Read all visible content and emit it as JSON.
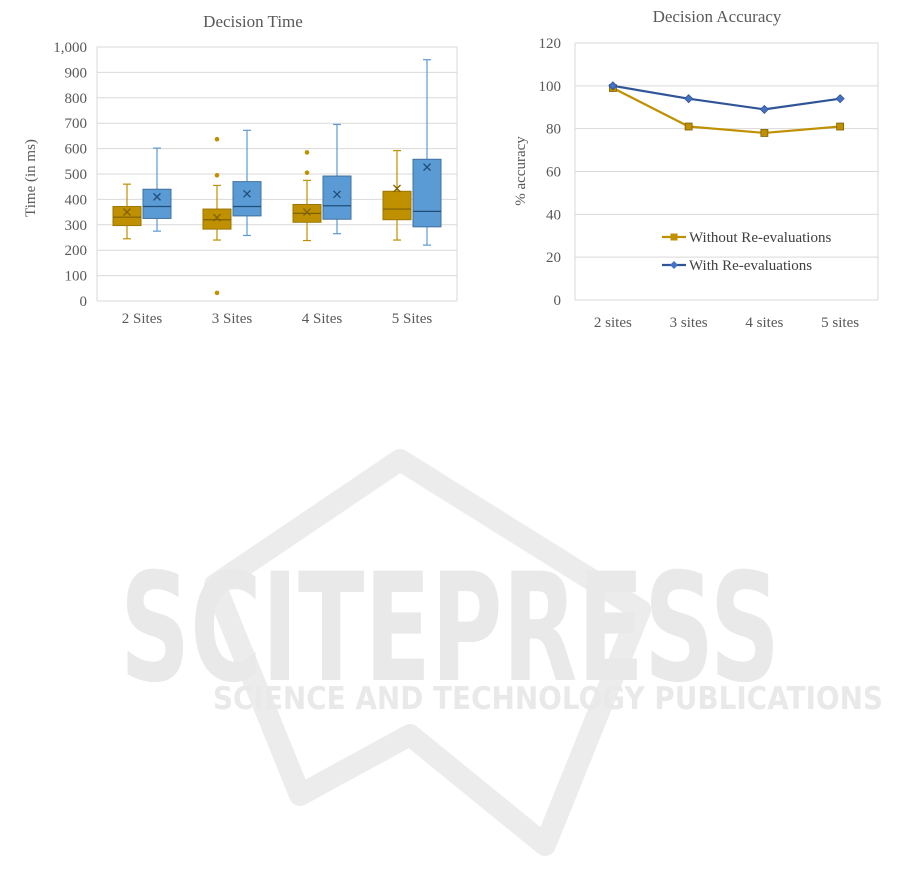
{
  "watermark": {
    "big": "SCITEPRESS",
    "small": "SCIENCE AND TECHNOLOGY PUBLICATIONS"
  },
  "chart_data": [
    {
      "type": "box",
      "title": "Decision Time",
      "ylabel": "Time (in ms)",
      "ylim": [
        0,
        1000
      ],
      "yticks": [
        "0",
        "100",
        "200",
        "300",
        "400",
        "500",
        "600",
        "700",
        "800",
        "900",
        "1,000"
      ],
      "categories": [
        "2 Sites",
        "3 Sites",
        "4 Sites",
        "5 Sites"
      ],
      "grid": true,
      "series": [
        {
          "color": "#bf9000",
          "boxes": [
            {
              "min": 245,
              "q1": 297,
              "median": 330,
              "q3": 372,
              "max": 460,
              "mean": 350,
              "outliers": []
            },
            {
              "min": 240,
              "q1": 283,
              "median": 320,
              "q3": 362,
              "max": 455,
              "mean": 328,
              "outliers": [
                495,
                637,
                32
              ]
            },
            {
              "min": 238,
              "q1": 310,
              "median": 345,
              "q3": 380,
              "max": 475,
              "mean": 350,
              "outliers": [
                505,
                585
              ]
            },
            {
              "min": 240,
              "q1": 320,
              "median": 362,
              "q3": 432,
              "max": 592,
              "mean": 443,
              "outliers": []
            }
          ]
        },
        {
          "color": "#5b9bd5",
          "boxes": [
            {
              "min": 275,
              "q1": 325,
              "median": 372,
              "q3": 440,
              "max": 602,
              "mean": 410,
              "outliers": []
            },
            {
              "min": 258,
              "q1": 335,
              "median": 372,
              "q3": 470,
              "max": 672,
              "mean": 422,
              "outliers": []
            },
            {
              "min": 265,
              "q1": 322,
              "median": 375,
              "q3": 492,
              "max": 695,
              "mean": 420,
              "outliers": []
            },
            {
              "min": 220,
              "q1": 292,
              "median": 353,
              "q3": 558,
              "max": 950,
              "mean": 527,
              "outliers": []
            }
          ]
        }
      ]
    },
    {
      "type": "line",
      "title": "Decision Accuracy",
      "ylabel": "% accuracy",
      "ylim": [
        0,
        120
      ],
      "yticks": [
        "0",
        "20",
        "40",
        "60",
        "80",
        "100",
        "120"
      ],
      "categories": [
        "2 sites",
        "3 sites",
        "4 sites",
        "5 sites"
      ],
      "grid": true,
      "legend": "bottom-inside",
      "series": [
        {
          "name": "Without Re-evaluations",
          "color": "#bf9000",
          "marker": "square",
          "values": [
            99,
            81,
            78,
            81
          ]
        },
        {
          "name": "With Re-evaluations",
          "color": "#2f5597",
          "marker": "diamond",
          "values": [
            100,
            94,
            89,
            94
          ]
        }
      ]
    }
  ]
}
